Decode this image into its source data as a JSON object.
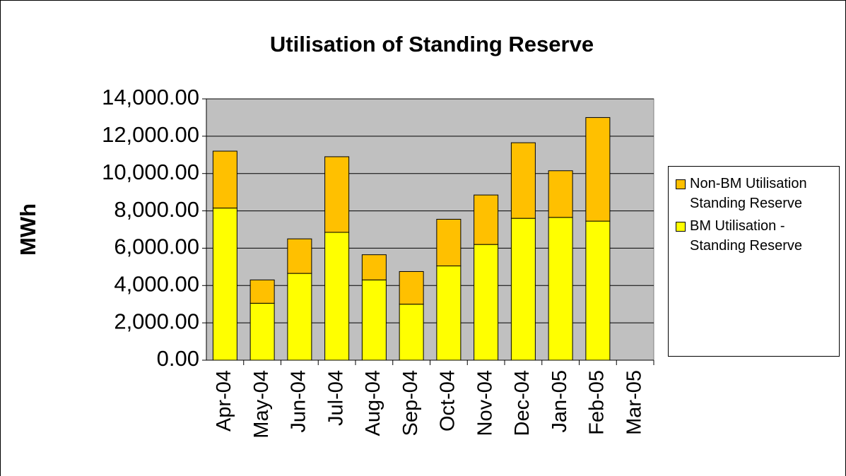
{
  "chart_data": {
    "type": "stacked_bar",
    "title": "Utilisation of Standing Reserve",
    "y_label": "MWh",
    "categories": [
      "Apr-04",
      "May-04",
      "Jun-04",
      "Jul-04",
      "Aug-04",
      "Sep-04",
      "Oct-04",
      "Nov-04",
      "Dec-04",
      "Jan-05",
      "Feb-05",
      "Mar-05"
    ],
    "series": [
      {
        "name": "BM Utilisation - Standing Reserve",
        "color": "#ffff00",
        "values": [
          8150,
          3050,
          4650,
          6850,
          4300,
          3000,
          5050,
          6200,
          7600,
          7650,
          7450,
          null
        ]
      },
      {
        "name": "Non-BM Utilisation Standing Reserve",
        "color": "#ffc000",
        "values": [
          3050,
          1250,
          1850,
          4050,
          1350,
          1750,
          2500,
          2650,
          4050,
          2500,
          5550,
          null
        ]
      }
    ],
    "ylim": [
      0,
      14000
    ],
    "yticks": [
      {
        "value": 0,
        "label": "0.00"
      },
      {
        "value": 2000,
        "label": "2,000.00"
      },
      {
        "value": 4000,
        "label": "4,000.00"
      },
      {
        "value": 6000,
        "label": "6,000.00"
      },
      {
        "value": 8000,
        "label": "8,000.00"
      },
      {
        "value": 10000,
        "label": "10,000.00"
      },
      {
        "value": 12000,
        "label": "12,000.00"
      },
      {
        "value": 14000,
        "label": "14,000.00"
      }
    ],
    "grid": true,
    "legend": "right"
  }
}
